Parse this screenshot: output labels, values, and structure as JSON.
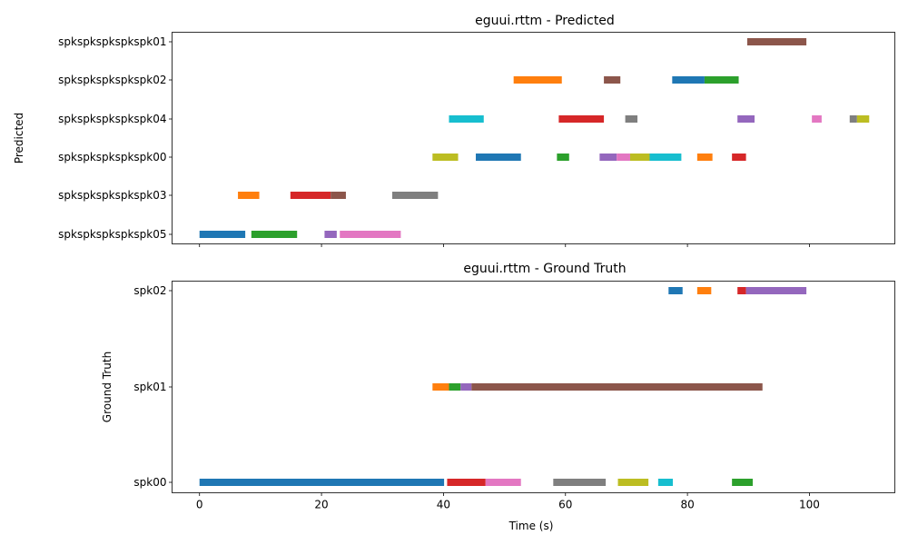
{
  "chart_data": [
    {
      "type": "timeline",
      "title": "eguui.rttm - Predicted",
      "ylabel": "Predicted",
      "xlabel": "",
      "xlim": [
        -4.5,
        114
      ],
      "xticks": [
        0,
        20,
        40,
        60,
        80,
        100
      ],
      "show_xtick_labels": false,
      "grid": false,
      "rows": [
        "spkspkspkspkspk05",
        "spkspkspkspkspk03",
        "spkspkspkspkspk00",
        "spkspkspkspkspk04",
        "spkspkspkspkspk02",
        "spkspkspkspkspk01"
      ],
      "segments": [
        {
          "row": 0,
          "start": 0.0,
          "end": 7.5,
          "color": "#1f77b4"
        },
        {
          "row": 0,
          "start": 8.5,
          "end": 16.0,
          "color": "#2ca02c"
        },
        {
          "row": 0,
          "start": 20.5,
          "end": 22.5,
          "color": "#9467bd"
        },
        {
          "row": 0,
          "start": 23.0,
          "end": 33.0,
          "color": "#e377c2"
        },
        {
          "row": 1,
          "start": 6.3,
          "end": 9.8,
          "color": "#ff7f0e"
        },
        {
          "row": 1,
          "start": 14.9,
          "end": 21.5,
          "color": "#d62728"
        },
        {
          "row": 1,
          "start": 21.5,
          "end": 24.0,
          "color": "#8c564b"
        },
        {
          "row": 1,
          "start": 31.6,
          "end": 39.1,
          "color": "#7f7f7f"
        },
        {
          "row": 2,
          "start": 38.2,
          "end": 42.4,
          "color": "#bcbd22"
        },
        {
          "row": 2,
          "start": 45.3,
          "end": 52.7,
          "color": "#1f77b4"
        },
        {
          "row": 2,
          "start": 58.6,
          "end": 60.6,
          "color": "#2ca02c"
        },
        {
          "row": 2,
          "start": 65.6,
          "end": 68.4,
          "color": "#9467bd"
        },
        {
          "row": 2,
          "start": 68.4,
          "end": 70.6,
          "color": "#e377c2"
        },
        {
          "row": 2,
          "start": 70.6,
          "end": 74.2,
          "color": "#bcbd22"
        },
        {
          "row": 2,
          "start": 73.8,
          "end": 79.0,
          "color": "#17becf"
        },
        {
          "row": 2,
          "start": 81.6,
          "end": 84.1,
          "color": "#ff7f0e"
        },
        {
          "row": 2,
          "start": 87.3,
          "end": 89.6,
          "color": "#d62728"
        },
        {
          "row": 3,
          "start": 40.9,
          "end": 46.6,
          "color": "#17becf"
        },
        {
          "row": 3,
          "start": 58.9,
          "end": 66.3,
          "color": "#d62728"
        },
        {
          "row": 3,
          "start": 69.8,
          "end": 71.8,
          "color": "#7f7f7f"
        },
        {
          "row": 3,
          "start": 88.2,
          "end": 91.0,
          "color": "#9467bd"
        },
        {
          "row": 3,
          "start": 100.4,
          "end": 102.0,
          "color": "#e377c2"
        },
        {
          "row": 3,
          "start": 106.6,
          "end": 107.8,
          "color": "#7f7f7f"
        },
        {
          "row": 3,
          "start": 107.8,
          "end": 109.8,
          "color": "#bcbd22"
        },
        {
          "row": 4,
          "start": 51.5,
          "end": 59.4,
          "color": "#ff7f0e"
        },
        {
          "row": 4,
          "start": 66.3,
          "end": 69.0,
          "color": "#8c564b"
        },
        {
          "row": 4,
          "start": 77.5,
          "end": 82.8,
          "color": "#1f77b4"
        },
        {
          "row": 4,
          "start": 82.8,
          "end": 88.4,
          "color": "#2ca02c"
        },
        {
          "row": 5,
          "start": 89.8,
          "end": 99.5,
          "color": "#8c564b"
        }
      ]
    },
    {
      "type": "timeline",
      "title": "eguui.rttm - Ground Truth",
      "ylabel": "Ground Truth",
      "xlabel": "Time (s)",
      "xlim": [
        -4.5,
        114
      ],
      "xticks": [
        0,
        20,
        40,
        60,
        80,
        100
      ],
      "show_xtick_labels": true,
      "grid": false,
      "rows": [
        "spk00",
        "spk01",
        "spk02"
      ],
      "segments": [
        {
          "row": 0,
          "start": 0.0,
          "end": 40.1,
          "color": "#1f77b4"
        },
        {
          "row": 0,
          "start": 40.6,
          "end": 46.9,
          "color": "#d62728"
        },
        {
          "row": 0,
          "start": 46.9,
          "end": 52.7,
          "color": "#e377c2"
        },
        {
          "row": 0,
          "start": 58.0,
          "end": 66.6,
          "color": "#7f7f7f"
        },
        {
          "row": 0,
          "start": 68.6,
          "end": 73.6,
          "color": "#bcbd22"
        },
        {
          "row": 0,
          "start": 75.2,
          "end": 77.6,
          "color": "#17becf"
        },
        {
          "row": 0,
          "start": 87.3,
          "end": 90.7,
          "color": "#2ca02c"
        },
        {
          "row": 1,
          "start": 38.2,
          "end": 40.9,
          "color": "#ff7f0e"
        },
        {
          "row": 1,
          "start": 40.9,
          "end": 42.8,
          "color": "#2ca02c"
        },
        {
          "row": 1,
          "start": 42.8,
          "end": 44.6,
          "color": "#9467bd"
        },
        {
          "row": 1,
          "start": 44.6,
          "end": 92.3,
          "color": "#8c564b"
        },
        {
          "row": 2,
          "start": 76.9,
          "end": 79.2,
          "color": "#1f77b4"
        },
        {
          "row": 2,
          "start": 81.6,
          "end": 83.9,
          "color": "#ff7f0e"
        },
        {
          "row": 2,
          "start": 88.2,
          "end": 89.6,
          "color": "#d62728"
        },
        {
          "row": 2,
          "start": 89.6,
          "end": 99.5,
          "color": "#9467bd"
        }
      ]
    }
  ]
}
